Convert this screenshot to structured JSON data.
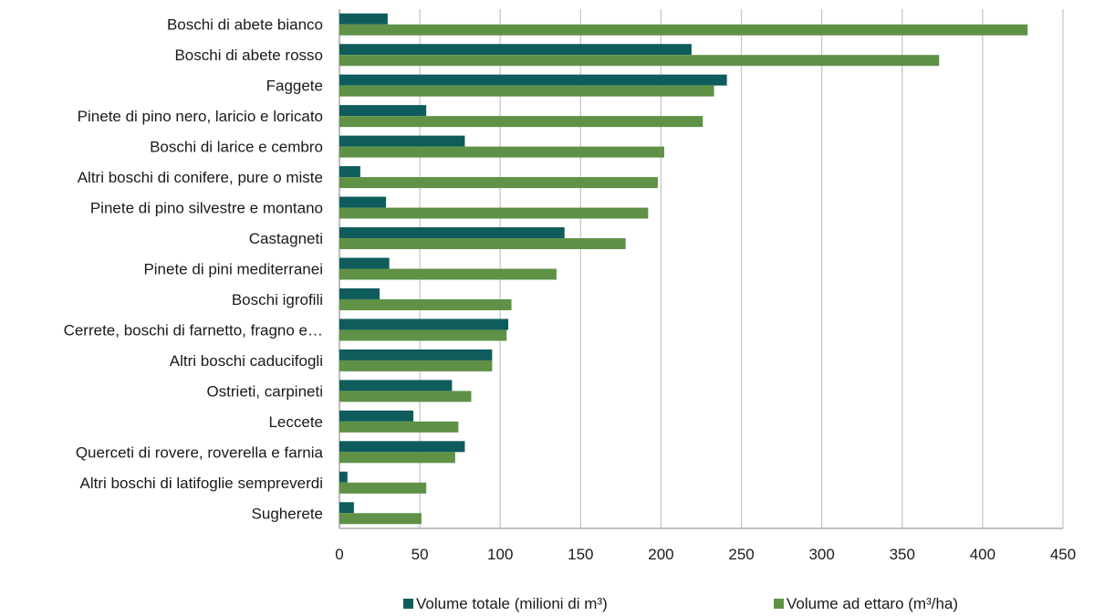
{
  "chart_data": {
    "type": "bar",
    "orientation": "horizontal",
    "categories": [
      "Boschi di abete bianco",
      "Boschi di abete rosso",
      "Faggete",
      "Pinete di pino nero, laricio e loricato",
      "Boschi di larice e cembro",
      "Altri boschi di conifere, pure o miste",
      "Pinete di pino silvestre e montano",
      "Castagneti",
      "Pinete di pini mediterranei",
      "Boschi igrofili",
      "Cerrete, boschi di farnetto, fragno e…",
      "Altri boschi caducifogli",
      "Ostrieti, carpineti",
      "Leccete",
      "Querceti di rovere, roverella e farnia",
      "Altri boschi di latifoglie sempreverdi",
      "Sugherete"
    ],
    "series": [
      {
        "name": "Volume totale (milioni di m³)",
        "color": "#0f5c5c",
        "values": [
          30,
          219,
          241,
          54,
          78,
          13,
          29,
          140,
          31,
          25,
          105,
          95,
          70,
          46,
          78,
          5,
          9
        ]
      },
      {
        "name": "Volume ad ettaro  (m³/ha)",
        "color": "#5f9147",
        "values": [
          428,
          373,
          233,
          226,
          202,
          198,
          192,
          178,
          135,
          107,
          104,
          95,
          82,
          74,
          72,
          54,
          51
        ]
      }
    ],
    "xlim": [
      0,
      450
    ],
    "xticks": [
      0,
      50,
      100,
      150,
      200,
      250,
      300,
      350,
      400,
      450
    ],
    "grid": "vertical",
    "legend_position": "bottom",
    "title": "",
    "xlabel": "",
    "ylabel": ""
  }
}
